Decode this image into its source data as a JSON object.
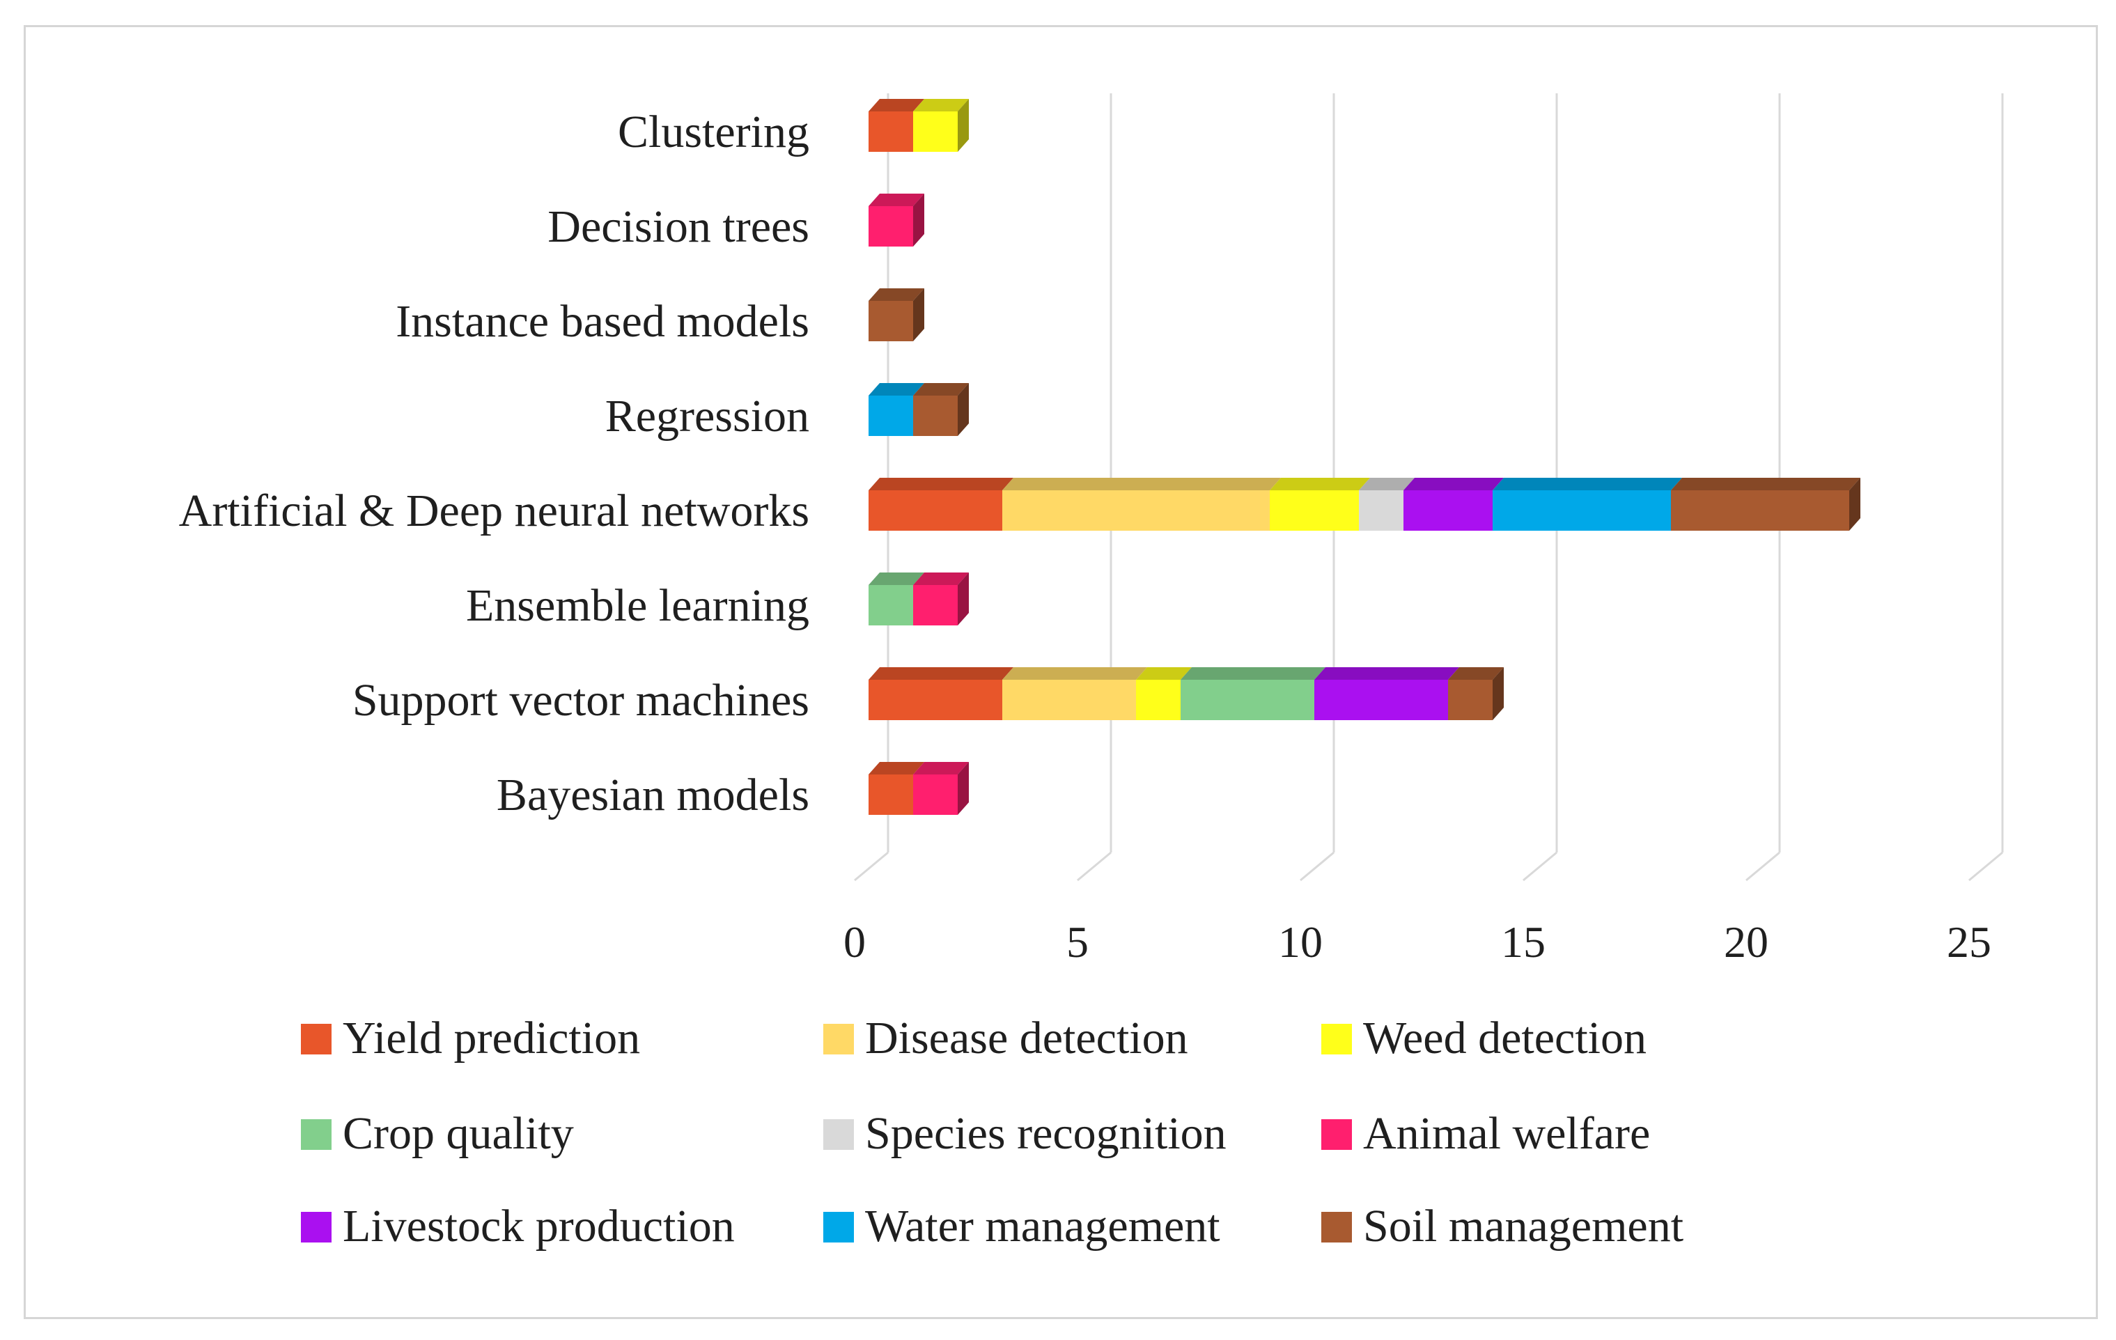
{
  "chart_data": {
    "type": "bar",
    "orientation": "horizontal",
    "stacked": true,
    "style": "3d",
    "title": "",
    "xlabel": "",
    "ylabel": "",
    "xlim": [
      0,
      25
    ],
    "xticks": [
      0,
      5,
      10,
      15,
      20,
      25
    ],
    "grid": true,
    "legend_position": "bottom",
    "categories": [
      "Clustering",
      "Decision trees",
      "Instance based models",
      "Regression",
      "Artificial & Deep neural networks",
      "Ensemble learning",
      "Support vector machines",
      "Bayesian models"
    ],
    "series": [
      {
        "name": "Yield prediction",
        "color": "#e8562a",
        "values": [
          1,
          0,
          0,
          0,
          3,
          0,
          3,
          1
        ]
      },
      {
        "name": "Disease detection",
        "color": "#ffd966",
        "values": [
          0,
          0,
          0,
          0,
          6,
          0,
          3,
          0
        ]
      },
      {
        "name": "Weed detection",
        "color": "#ffff1a",
        "values": [
          1,
          0,
          0,
          0,
          2,
          0,
          1,
          0
        ]
      },
      {
        "name": "Crop quality",
        "color": "#82cf8c",
        "values": [
          0,
          0,
          0,
          0,
          0,
          1,
          3,
          0
        ]
      },
      {
        "name": "Species recognition",
        "color": "#d9d9d9",
        "values": [
          0,
          0,
          0,
          0,
          1,
          0,
          0,
          0
        ]
      },
      {
        "name": "Animal welfare",
        "color": "#ff1f6e",
        "values": [
          0,
          1,
          0,
          0,
          0,
          1,
          0,
          1
        ]
      },
      {
        "name": "Livestock production",
        "color": "#aa10f0",
        "values": [
          0,
          0,
          0,
          0,
          2,
          0,
          3,
          0
        ]
      },
      {
        "name": "Water management",
        "color": "#00a8e8",
        "values": [
          0,
          0,
          0,
          1,
          4,
          0,
          0,
          0
        ]
      },
      {
        "name": "Soil management",
        "color": "#a85a30",
        "values": [
          0,
          0,
          1,
          1,
          4,
          0,
          1,
          0
        ]
      }
    ]
  }
}
